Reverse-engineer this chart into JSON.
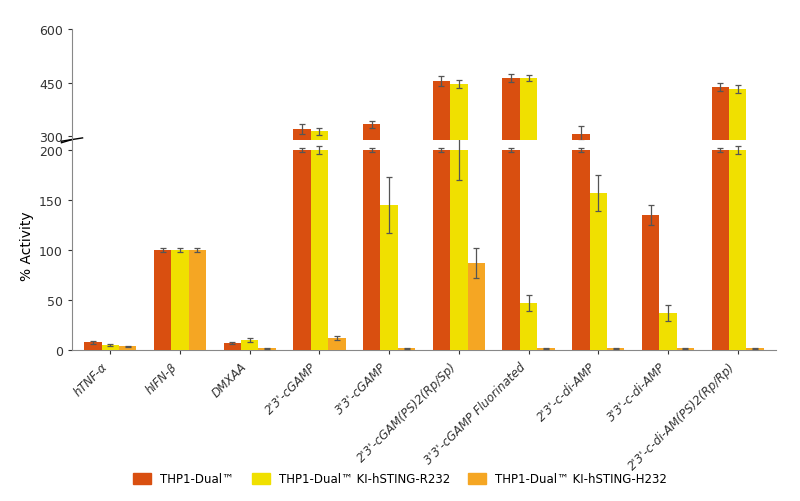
{
  "categories": [
    "hTNF-α",
    "hIFN-β",
    "DMXAA",
    "2'3'-cGAMP",
    "3'3'-cGAMP",
    "2'3'-cGAM(PS)2(Rp/Sp)",
    "3'3'-cGAMP Fluorinated",
    "2'3'-c-di-AMP",
    "3'3'-c-di-AMP",
    "2'3'-c-di-AM(PS)2(Rp/Rp)"
  ],
  "series": [
    {
      "name": "THP1-Dual™",
      "values": [
        8,
        100,
        7,
        200,
        200,
        200,
        200,
        200,
        135,
        200
      ],
      "errors": [
        1.5,
        2,
        1,
        2,
        2,
        2,
        2,
        2,
        10,
        2
      ],
      "color": "#D94F10"
    },
    {
      "name": "THP1-Dual™ KI-hSTING-R232",
      "values": [
        5,
        100,
        10,
        200,
        145,
        200,
        47,
        157,
        37,
        200
      ],
      "errors": [
        1,
        2,
        2,
        4,
        28,
        30,
        8,
        18,
        8,
        4
      ],
      "color": "#F0E000"
    },
    {
      "name": "THP1-Dual™ KI-hSTING-H232",
      "values": [
        4,
        100,
        2,
        12,
        2,
        87,
        2,
        2,
        2,
        2
      ],
      "errors": [
        0.8,
        2,
        0.3,
        2,
        0.3,
        15,
        0.3,
        0.3,
        0.3,
        0.3
      ],
      "color": "#F5A623"
    }
  ],
  "upper_bars": [
    {
      "name": "THP1-Dual™",
      "values": [
        null,
        null,
        null,
        320,
        333,
        455,
        462,
        307,
        null,
        438
      ],
      "errors": [
        null,
        null,
        null,
        14,
        10,
        14,
        11,
        22,
        null,
        12
      ],
      "color": "#D94F10"
    },
    {
      "name": "THP1-Dual™ KI-hSTING-R232",
      "values": [
        null,
        null,
        null,
        313,
        null,
        447,
        462,
        null,
        null,
        432
      ],
      "errors": [
        null,
        null,
        null,
        9,
        null,
        11,
        9,
        null,
        null,
        10
      ],
      "color": "#F0E000"
    },
    {
      "name": "THP1-Dual™ KI-hSTING-H232",
      "values": [
        null,
        null,
        null,
        null,
        null,
        null,
        null,
        null,
        null,
        null
      ],
      "errors": [
        null,
        null,
        null,
        null,
        null,
        null,
        null,
        null,
        null,
        null
      ],
      "color": "#F5A623"
    }
  ],
  "ylabel": "% Activity",
  "bar_width": 0.25,
  "background_color": "#FFFFFF",
  "lower_ylim": [
    0,
    210
  ],
  "lower_yticks": [
    0,
    50,
    100,
    150,
    200
  ],
  "upper_ylim": [
    290,
    520
  ],
  "upper_yticks": [
    300,
    450,
    600
  ],
  "error_color": "#555555",
  "spine_color": "#888888"
}
